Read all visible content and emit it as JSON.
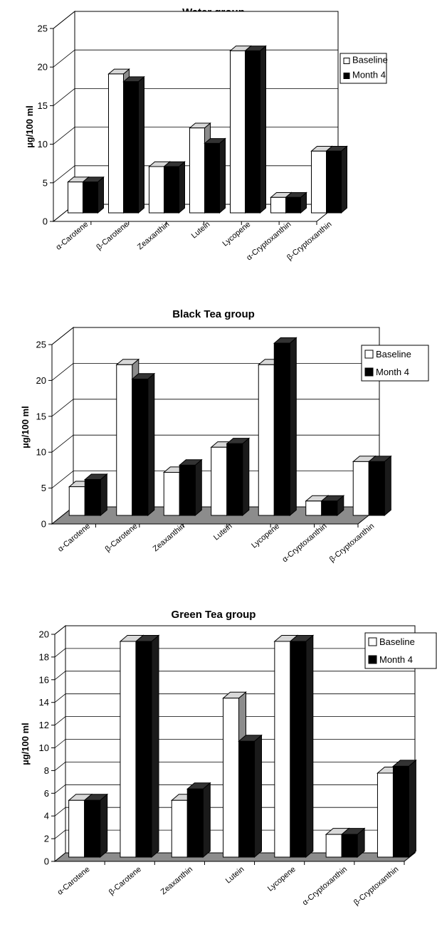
{
  "chart_data": [
    {
      "type": "bar",
      "title": "Water group",
      "ylabel": "µg/100 ml",
      "xlabel": "",
      "ylim": [
        0,
        25
      ],
      "yticks": [
        0,
        5,
        10,
        15,
        20,
        25
      ],
      "categories": [
        "α-Carotene",
        "β-Carotene",
        "Zeaxanthin",
        "Lutein",
        "Lycopene",
        "α-Cryptoxanthin",
        "β-Cryptoxanthin"
      ],
      "series": [
        {
          "name": "Baseline",
          "values": [
            4,
            18,
            6,
            11,
            21,
            2,
            8
          ]
        },
        {
          "name": "Month 4",
          "values": [
            4,
            17,
            6,
            9,
            21,
            2,
            8
          ]
        }
      ],
      "grid": true,
      "legend": "top-right"
    },
    {
      "type": "bar",
      "title": "Black Tea group",
      "ylabel": "µg/100 ml",
      "xlabel": "",
      "ylim": [
        0,
        25
      ],
      "yticks": [
        0,
        5,
        10,
        15,
        20,
        25
      ],
      "categories": [
        "α-Carotene",
        "β-Carotene",
        "Zeaxanthin",
        "Lutein",
        "Lycopene",
        "α-Cryptoxanthin",
        "β-Cryptoxanthin"
      ],
      "series": [
        {
          "name": "Baseline",
          "values": [
            4,
            21,
            6,
            9.5,
            21,
            2,
            7.5
          ]
        },
        {
          "name": "Month 4",
          "values": [
            5,
            19,
            7,
            10,
            24,
            2,
            7.5
          ]
        }
      ],
      "grid": true,
      "legend": "top-right"
    },
    {
      "type": "bar",
      "title": "Green Tea group",
      "ylabel": "µg/100 ml",
      "xlabel": "",
      "ylim": [
        0,
        20
      ],
      "yticks": [
        0,
        2,
        4,
        6,
        8,
        10,
        12,
        14,
        16,
        18,
        20
      ],
      "categories": [
        "α-Carotene",
        "β-Carotene",
        "Zeaxanthin",
        "Lutein",
        "Lycopene",
        "α-Cryptoxanthin",
        "β-Cryptoxanthin"
      ],
      "series": [
        {
          "name": "Baseline",
          "values": [
            5,
            19,
            5,
            14,
            19,
            2,
            7.4
          ]
        },
        {
          "name": "Month 4",
          "values": [
            5,
            19,
            6,
            10.2,
            19,
            2,
            8
          ]
        }
      ],
      "grid": true,
      "legend": "top-right"
    }
  ]
}
